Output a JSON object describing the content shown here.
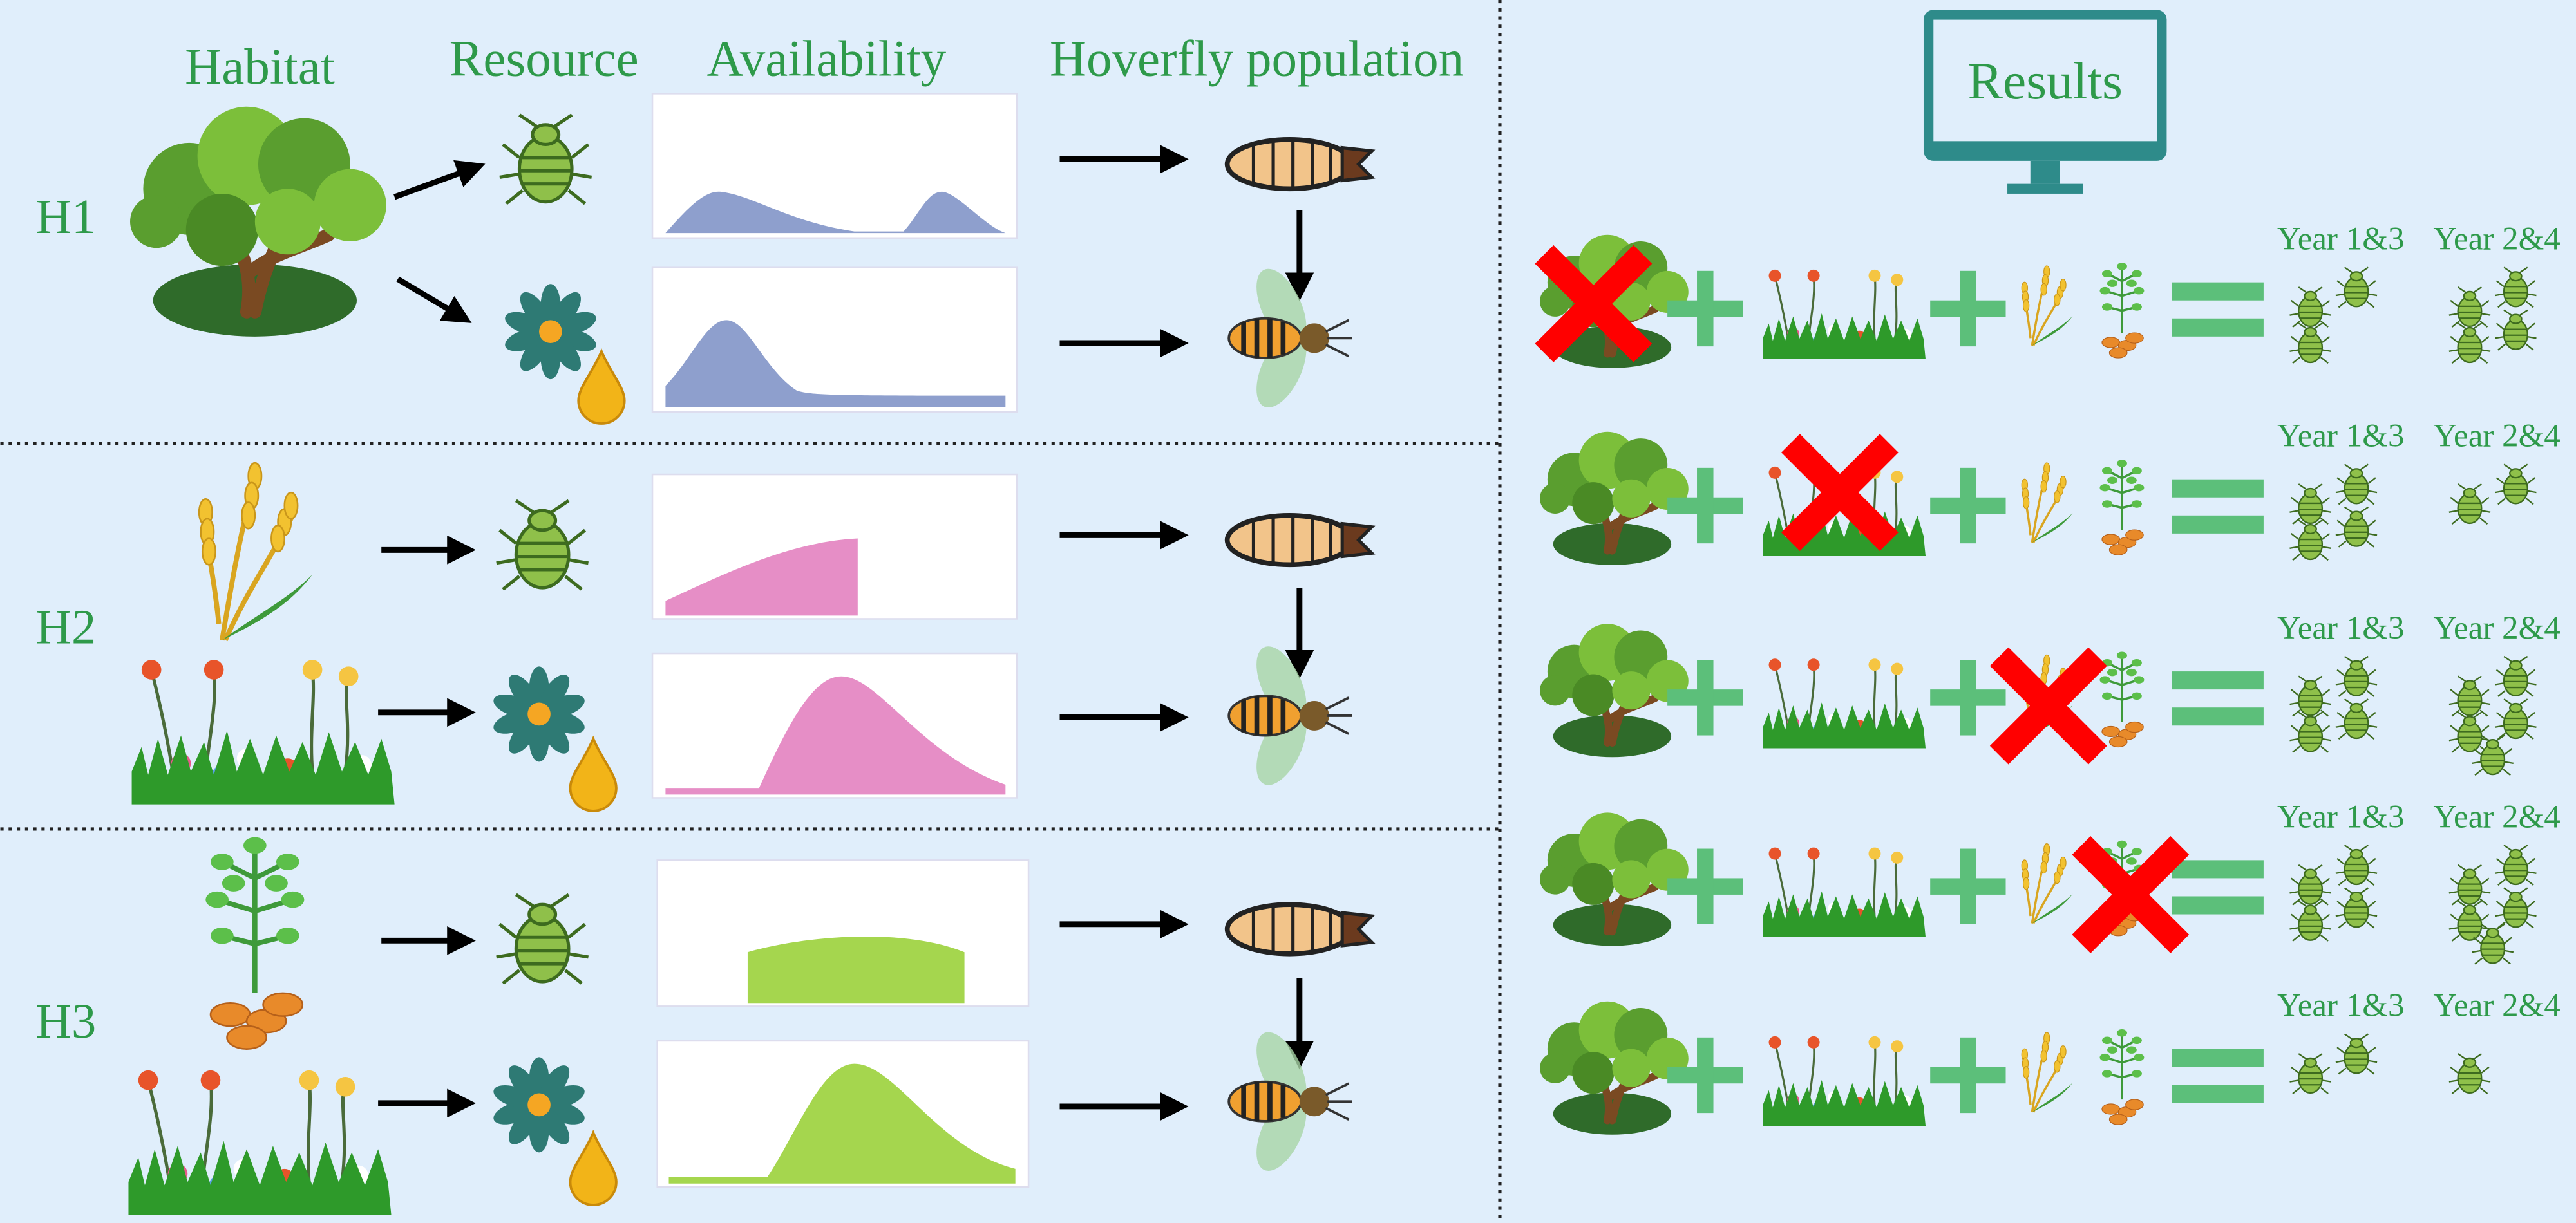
{
  "header": {
    "habitat": "Habitat",
    "resource": "Resource",
    "availability": "Availability",
    "hoverfly_population": "Hoverfly population"
  },
  "hypotheses": [
    {
      "label": "H1"
    },
    {
      "label": "H2"
    },
    {
      "label": "H3"
    }
  ],
  "results": {
    "title": "Results",
    "scenarios": [
      {
        "year_a": "Year 1&3",
        "year_b": "Year 2&4"
      },
      {
        "year_a": "Year 1&3",
        "year_b": "Year 2&4"
      },
      {
        "year_a": "Year 1&3",
        "year_b": "Year 2&4"
      },
      {
        "year_a": "Year 1&3",
        "year_b": "Year 2&4"
      },
      {
        "year_a": "Year 1&3",
        "year_b": "Year 2&4"
      }
    ]
  }
}
